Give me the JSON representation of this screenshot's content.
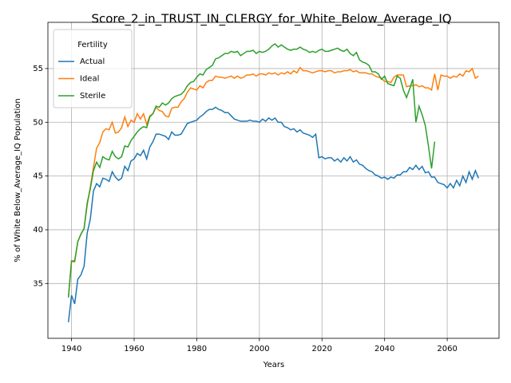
{
  "chart_data": {
    "type": "line",
    "title": "Score_2_in_TRUST_IN_CLERGY_for_White_Below_Average_IQ",
    "x_label": "Years",
    "y_label": "% of White Below_Average_IQ Population",
    "legend_title": "Fertility",
    "legend": "upper left",
    "grid": true,
    "x": [
      1939,
      1940,
      1941,
      1942,
      1943,
      1944,
      1945,
      1946,
      1947,
      1948,
      1949,
      1950,
      1951,
      1952,
      1953,
      1954,
      1955,
      1956,
      1957,
      1958,
      1959,
      1960,
      1961,
      1962,
      1963,
      1964,
      1965,
      1966,
      1967,
      1968,
      1969,
      1970,
      1971,
      1972,
      1973,
      1974,
      1975,
      1976,
      1977,
      1978,
      1979,
      1980,
      1981,
      1982,
      1983,
      1984,
      1985,
      1986,
      1987,
      1988,
      1989,
      1990,
      1991,
      1992,
      1993,
      1994,
      1995,
      1996,
      1997,
      1998,
      1999,
      2000,
      2001,
      2002,
      2003,
      2004,
      2005,
      2006,
      2007,
      2008,
      2009,
      2010,
      2011,
      2012,
      2013,
      2014,
      2015,
      2016,
      2017,
      2018,
      2019,
      2020,
      2021,
      2022,
      2023,
      2024,
      2025,
      2026,
      2027,
      2028,
      2029,
      2030,
      2031,
      2032,
      2033,
      2034,
      2035,
      2036,
      2037,
      2038,
      2039,
      2040,
      2041,
      2042,
      2043,
      2044,
      2045,
      2046,
      2047,
      2048,
      2049,
      2050,
      2051,
      2052,
      2053,
      2054,
      2055,
      2056,
      2057,
      2058,
      2059,
      2060,
      2061,
      2062,
      2063,
      2064,
      2065,
      2066,
      2067,
      2068,
      2069,
      2070
    ],
    "series": [
      {
        "name": "Actual",
        "color": "#1f77b4",
        "values": [
          31.4,
          33.9,
          33.1,
          35.4,
          35.8,
          36.6,
          39.7,
          41.0,
          43.6,
          44.3,
          44.0,
          44.8,
          44.7,
          44.5,
          45.4,
          44.9,
          44.6,
          44.8,
          45.9,
          45.5,
          46.4,
          46.6,
          47.1,
          46.9,
          47.4,
          46.6,
          47.7,
          48.2,
          48.9,
          48.9,
          48.8,
          48.7,
          48.4,
          49.1,
          48.8,
          48.8,
          48.9,
          49.4,
          49.9,
          50.0,
          50.1,
          50.2,
          50.5,
          50.7,
          51.0,
          51.2,
          51.2,
          51.4,
          51.2,
          51.1,
          50.9,
          50.9,
          50.6,
          50.3,
          50.2,
          50.1,
          50.1,
          50.1,
          50.2,
          50.1,
          50.1,
          50.0,
          50.3,
          50.1,
          50.4,
          50.2,
          50.4,
          50.0,
          50.0,
          49.6,
          49.5,
          49.3,
          49.4,
          49.1,
          49.3,
          49.0,
          48.9,
          48.8,
          48.6,
          48.9,
          46.7,
          46.8,
          46.6,
          46.7,
          46.7,
          46.4,
          46.6,
          46.3,
          46.7,
          46.4,
          46.8,
          46.3,
          46.5,
          46.1,
          46.0,
          45.7,
          45.5,
          45.4,
          45.1,
          45.0,
          44.8,
          44.9,
          44.7,
          44.9,
          44.8,
          45.1,
          45.1,
          45.4,
          45.4,
          45.8,
          45.6,
          46.0,
          45.6,
          45.9,
          45.3,
          45.4,
          44.9,
          44.9,
          44.4,
          44.3,
          44.2,
          43.9,
          44.3,
          43.9,
          44.6,
          44.1,
          45.0,
          44.4,
          45.4,
          44.7,
          45.5,
          44.8
        ]
      },
      {
        "name": "Ideal",
        "color": "#ff7f0e",
        "values": [
          33.7,
          37.1,
          37.0,
          38.9,
          39.6,
          40.1,
          42.3,
          44.0,
          45.8,
          47.6,
          48.1,
          49.1,
          49.4,
          49.3,
          50.0,
          49.0,
          49.1,
          49.5,
          50.5,
          49.6,
          50.2,
          50.0,
          50.8,
          50.3,
          50.8,
          49.8,
          50.6,
          50.8,
          51.4,
          51.1,
          51.0,
          50.6,
          50.5,
          51.3,
          51.4,
          51.4,
          51.9,
          52.2,
          52.8,
          53.2,
          53.1,
          53.0,
          53.4,
          53.2,
          53.7,
          53.9,
          53.9,
          54.3,
          54.2,
          54.2,
          54.1,
          54.2,
          54.3,
          54.1,
          54.3,
          54.1,
          54.2,
          54.4,
          54.4,
          54.5,
          54.3,
          54.5,
          54.5,
          54.4,
          54.6,
          54.5,
          54.6,
          54.4,
          54.6,
          54.5,
          54.7,
          54.5,
          54.8,
          54.6,
          55.1,
          54.8,
          54.8,
          54.7,
          54.6,
          54.7,
          54.8,
          54.8,
          54.7,
          54.8,
          54.8,
          54.6,
          54.7,
          54.7,
          54.8,
          54.8,
          54.9,
          54.7,
          54.8,
          54.6,
          54.6,
          54.6,
          54.5,
          54.5,
          54.3,
          54.2,
          54.1,
          53.8,
          53.8,
          53.7,
          54.2,
          54.4,
          54.4,
          54.4,
          53.3,
          53.4,
          53.4,
          53.5,
          53.3,
          53.4,
          53.2,
          53.2,
          53.0,
          54.5,
          53.0,
          54.4,
          54.3,
          54.3,
          54.1,
          54.3,
          54.2,
          54.5,
          54.3,
          54.8,
          54.7,
          55.0,
          54.1,
          54.3
        ]
      },
      {
        "name": "Sterile",
        "color": "#2ca02c",
        "values": [
          33.7,
          37.1,
          37.1,
          38.9,
          39.6,
          40.1,
          42.5,
          43.8,
          45.5,
          46.3,
          45.8,
          46.8,
          46.6,
          46.5,
          47.3,
          46.8,
          46.6,
          46.8,
          47.8,
          47.7,
          48.3,
          48.7,
          49.1,
          49.4,
          49.6,
          49.5,
          50.5,
          50.8,
          51.5,
          51.4,
          51.8,
          51.6,
          51.8,
          52.2,
          52.4,
          52.5,
          52.6,
          52.9,
          53.4,
          53.7,
          53.8,
          54.2,
          54.5,
          54.4,
          54.9,
          55.1,
          55.3,
          55.9,
          56.0,
          56.2,
          56.4,
          56.4,
          56.6,
          56.5,
          56.6,
          56.2,
          56.4,
          56.6,
          56.6,
          56.7,
          56.4,
          56.6,
          56.5,
          56.6,
          56.8,
          57.1,
          57.3,
          57.0,
          57.2,
          57.0,
          56.8,
          56.7,
          56.8,
          56.8,
          57.0,
          56.8,
          56.7,
          56.5,
          56.6,
          56.5,
          56.7,
          56.8,
          56.6,
          56.6,
          56.7,
          56.8,
          56.9,
          56.7,
          56.6,
          56.8,
          56.4,
          56.2,
          56.5,
          55.8,
          55.6,
          55.5,
          55.3,
          54.7,
          54.7,
          54.5,
          54.0,
          54.3,
          53.6,
          53.5,
          53.4,
          54.3,
          54.1,
          53.0,
          52.3,
          53.1,
          54.0,
          50.0,
          51.5,
          50.7,
          49.7,
          47.8,
          45.7,
          48.2,
          null,
          null,
          null,
          null,
          null,
          null,
          null,
          null,
          null,
          null,
          null,
          null,
          null,
          null
        ]
      }
    ],
    "xlim": [
      1932.45,
      2076.55
    ],
    "ylim": [
      29.9,
      59.3
    ],
    "xticks": [
      1940,
      1960,
      1980,
      2000,
      2020,
      2040,
      2060
    ],
    "yticks": [
      35,
      40,
      45,
      50,
      55
    ]
  }
}
